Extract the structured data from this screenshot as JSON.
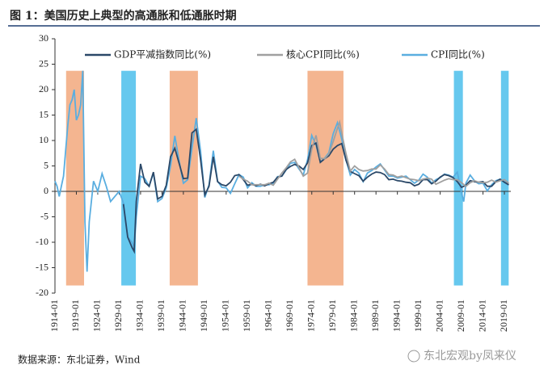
{
  "chart_data": {
    "type": "line",
    "title": "图 1：美国历史上典型的高通胀和低通胀时期",
    "source": "数据来源：东北证券，Wind",
    "watermark": "东北宏观by凤来仪",
    "xlim": [
      1914,
      2020.5
    ],
    "xticks": [
      {
        "value": 1914,
        "label": "1914-01"
      },
      {
        "value": 1919,
        "label": "1919-01"
      },
      {
        "value": 1924,
        "label": "1924-01"
      },
      {
        "value": 1929,
        "label": "1929-01"
      },
      {
        "value": 1934,
        "label": "1934-01"
      },
      {
        "value": 1939,
        "label": "1939-01"
      },
      {
        "value": 1944,
        "label": "1944-01"
      },
      {
        "value": 1949,
        "label": "1949-01"
      },
      {
        "value": 1954,
        "label": "1954-01"
      },
      {
        "value": 1959,
        "label": "1959-01"
      },
      {
        "value": 1964,
        "label": "1964-01"
      },
      {
        "value": 1969,
        "label": "1969-01"
      },
      {
        "value": 1974,
        "label": "1974-01"
      },
      {
        "value": 1979,
        "label": "1979-01"
      },
      {
        "value": 1984,
        "label": "1984-01"
      },
      {
        "value": 1989,
        "label": "1989-01"
      },
      {
        "value": 1994,
        "label": "1994-01"
      },
      {
        "value": 1999,
        "label": "1999-01"
      },
      {
        "value": 2004,
        "label": "2004-01"
      },
      {
        "value": 2009,
        "label": "2009-01"
      },
      {
        "value": 2014,
        "label": "2014-01"
      },
      {
        "value": 2019,
        "label": "2019-01"
      }
    ],
    "ylim": [
      -20,
      30
    ],
    "yticks": [
      -20,
      -15,
      -10,
      -5,
      0,
      5,
      10,
      15,
      20,
      25,
      30
    ],
    "shade_ylim": [
      -18.5,
      23.7
    ],
    "shaded_periods": [
      {
        "start": 1916.6,
        "end": 1920.8,
        "color": "#f4b590"
      },
      {
        "start": 1929.5,
        "end": 1932.9,
        "color": "#66c8ee"
      },
      {
        "start": 1940.8,
        "end": 1947.4,
        "color": "#f4b590"
      },
      {
        "start": 1973,
        "end": 1981.4,
        "color": "#f4b590"
      },
      {
        "start": 2007.2,
        "end": 2009.3,
        "color": "#66c8ee"
      },
      {
        "start": 2018.2,
        "end": 2020,
        "color": "#66c8ee"
      }
    ],
    "series": [
      {
        "name": "CPI同比(%)",
        "color": "#5aaee0",
        "x": [
          1914,
          1914.5,
          1915,
          1915.5,
          1916,
          1916.5,
          1917,
          1917.5,
          1918,
          1918.5,
          1919,
          1919.5,
          1920,
          1920.5,
          1921,
          1921.5,
          1922,
          1923,
          1924,
          1925,
          1926,
          1927,
          1928,
          1929,
          1930,
          1931,
          1932,
          1932.5,
          1933,
          1934,
          1935,
          1936,
          1937,
          1938,
          1939,
          1940,
          1941,
          1942,
          1943,
          1944,
          1945,
          1946,
          1947,
          1948,
          1949,
          1950,
          1951,
          1952,
          1953,
          1954,
          1955,
          1956,
          1957,
          1958,
          1959,
          1960,
          1961,
          1962,
          1963,
          1964,
          1965,
          1966,
          1967,
          1968,
          1969,
          1970,
          1971,
          1972,
          1973,
          1974,
          1975,
          1976,
          1977,
          1978,
          1979,
          1980,
          1981,
          1982,
          1983,
          1984,
          1985,
          1986,
          1987,
          1988,
          1989,
          1990,
          1991,
          1992,
          1993,
          1994,
          1995,
          1996,
          1997,
          1998,
          1999,
          2000,
          2001,
          2002,
          2003,
          2004,
          2005,
          2006,
          2007,
          2008,
          2009,
          2009.5,
          2010,
          2011,
          2012,
          2013,
          2014,
          2015,
          2016,
          2017,
          2018,
          2019,
          2020
        ],
        "values": [
          2,
          1,
          -1,
          1,
          3,
          8,
          13,
          17,
          18,
          20,
          14,
          15,
          17,
          23.7,
          -6,
          -15.8,
          -6,
          2,
          0,
          3.5,
          1,
          -2,
          -1,
          0,
          -2.3,
          -9,
          -10,
          -11,
          -5,
          3,
          2.5,
          1,
          3.6,
          -2,
          -1.4,
          0.7,
          5,
          10.9,
          6,
          1.6,
          2.3,
          8.5,
          14.4,
          8,
          -1.2,
          1.3,
          8,
          2,
          0.8,
          0.7,
          -0.4,
          1.5,
          3.3,
          2.8,
          0.7,
          1.7,
          1,
          1,
          1.3,
          1.3,
          1.6,
          2.9,
          3,
          4.2,
          5.5,
          5.7,
          4.4,
          3.2,
          6.2,
          11,
          9.1,
          5.8,
          6.5,
          7.6,
          11.3,
          13.5,
          10.3,
          6.2,
          3.2,
          4.3,
          3.6,
          1.9,
          3.6,
          4.1,
          4.8,
          5.4,
          4.2,
          3,
          3,
          2.6,
          2.8,
          3,
          2.3,
          1.6,
          2.2,
          3.4,
          2.8,
          1.6,
          2.3,
          2.7,
          3.4,
          3.2,
          2.8,
          3.8,
          -0.4,
          -2,
          1.6,
          3.2,
          2.1,
          1.5,
          1.6,
          0.1,
          1.3,
          2.1,
          2.4,
          1.8,
          1.2
        ]
      },
      {
        "name": "GDP平减指数同比(%)",
        "color": "#2b4868",
        "x": [
          1930,
          1931,
          1932,
          1932.5,
          1933,
          1934,
          1935,
          1936,
          1937,
          1938,
          1939,
          1940,
          1941,
          1942,
          1943,
          1944,
          1945,
          1946,
          1947,
          1948,
          1949,
          1950,
          1951,
          1952,
          1953,
          1954,
          1955,
          1956,
          1957,
          1958,
          1959,
          1960,
          1961,
          1962,
          1963,
          1964,
          1965,
          1966,
          1967,
          1968,
          1969,
          1970,
          1971,
          1972,
          1973,
          1974,
          1975,
          1976,
          1977,
          1978,
          1979,
          1980,
          1981,
          1982,
          1983,
          1984,
          1985,
          1986,
          1987,
          1988,
          1989,
          1990,
          1991,
          1992,
          1993,
          1994,
          1995,
          1996,
          1997,
          1998,
          1999,
          2000,
          2001,
          2002,
          2003,
          2004,
          2005,
          2006,
          2007,
          2008,
          2009,
          2010,
          2011,
          2012,
          2013,
          2014,
          2015,
          2016,
          2017,
          2018,
          2019,
          2020
        ],
        "values": [
          -2.5,
          -9,
          -11,
          -11.8,
          -2,
          5.4,
          1.8,
          1,
          3.8,
          -1.5,
          -1,
          1.2,
          6.8,
          8.5,
          5.5,
          2.5,
          2.6,
          11.5,
          12.2,
          6.3,
          -0.7,
          1,
          6.8,
          1.9,
          1.3,
          1.1,
          1.8,
          3.1,
          3.3,
          2.3,
          1.2,
          1.4,
          1.1,
          1.4,
          1.1,
          1.5,
          1.8,
          2.8,
          3,
          4.3,
          4.9,
          5.3,
          5,
          4.3,
          5.6,
          9,
          9.5,
          5.7,
          6.4,
          7,
          8.3,
          9,
          9.4,
          6.1,
          3.9,
          3.5,
          3.1,
          2,
          2.8,
          3.4,
          3.8,
          3.7,
          3.3,
          2.3,
          2.4,
          2.1,
          2,
          1.8,
          1.7,
          1.1,
          1.4,
          2.3,
          2.3,
          1.5,
          2,
          2.8,
          3.3,
          3.1,
          2.7,
          1.9,
          0.8,
          1.2,
          2.1,
          1.9,
          1.8,
          1.9,
          1,
          1,
          1.9,
          2.4,
          1.8,
          1.3
        ]
      },
      {
        "name": "核心CPI同比(%)",
        "color": "#a0a0a0",
        "x": [
          1957,
          1958,
          1959,
          1960,
          1961,
          1962,
          1963,
          1964,
          1965,
          1966,
          1967,
          1968,
          1969,
          1970,
          1971,
          1972,
          1973,
          1974,
          1975,
          1976,
          1977,
          1978,
          1979,
          1980,
          1980.5,
          1981,
          1982,
          1983,
          1984,
          1985,
          1986,
          1987,
          1988,
          1989,
          1990,
          1991,
          1992,
          1993,
          1994,
          1995,
          1996,
          1997,
          1998,
          1999,
          2000,
          2001,
          2002,
          2003,
          2004,
          2005,
          2006,
          2007,
          2008,
          2009,
          2010,
          2011,
          2012,
          2013,
          2014,
          2015,
          2016,
          2017,
          2018,
          2019,
          2020
        ],
        "values": [
          3,
          2.4,
          2,
          1.3,
          1.3,
          1.3,
          1.3,
          1.6,
          1.2,
          2.4,
          3.6,
          4.6,
          5.8,
          6.3,
          4.7,
          3,
          3.6,
          8.3,
          11,
          6.5,
          6.4,
          7.4,
          9.8,
          12.4,
          13.6,
          11.4,
          7.4,
          4,
          5,
          4.3,
          4,
          4.1,
          4.4,
          4.4,
          5.2,
          4.4,
          3.3,
          3.2,
          2.8,
          3,
          2.7,
          2.4,
          2.3,
          2.1,
          2.4,
          2.6,
          2.4,
          1.4,
          1.8,
          2.2,
          2.5,
          2.3,
          2.3,
          1.7,
          1,
          1.7,
          2.1,
          1.8,
          1.7,
          1.8,
          2.2,
          1.8,
          2.1,
          2.3,
          1.6
        ]
      }
    ]
  }
}
